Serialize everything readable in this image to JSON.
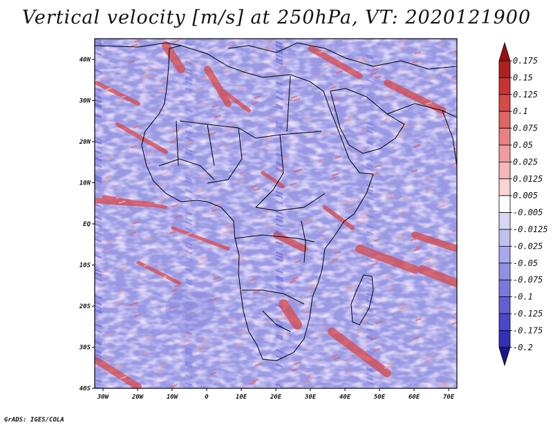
{
  "title": "Vertical velocity [m/s] at 250hPa, VT: 2020121900",
  "credit": "GrADS: IGES/COLA",
  "map": {
    "region": "Africa",
    "variable": "Vertical velocity",
    "units": "m/s",
    "level": "250hPa",
    "valid_time": "2020121900",
    "lon_labels": [
      "30W",
      "20W",
      "10W",
      "0",
      "10E",
      "20E",
      "30E",
      "40E",
      "50E",
      "60E",
      "70E"
    ],
    "lat_labels": [
      "40N",
      "30N",
      "20N",
      "10N",
      "EQ",
      "10S",
      "20S",
      "30S",
      "40S"
    ]
  },
  "colorbar": {
    "levels": [
      "0.175",
      "0.15",
      "0.125",
      "0.1",
      "0.075",
      "0.05",
      "0.025",
      "0.0125",
      "0.005",
      "-0.005",
      "-0.0125",
      "-0.025",
      "-0.05",
      "-0.075",
      "-0.1",
      "-0.125",
      "-0.175",
      "-0.2"
    ],
    "colors": [
      "#b01e1e",
      "#c83232",
      "#d84848",
      "#e26464",
      "#ea8080",
      "#f09c9c",
      "#f4b8b8",
      "#f8d4d4",
      "#ffffff",
      "#d8d8f4",
      "#c0c0f0",
      "#a8a8ec",
      "#9090e6",
      "#7878de",
      "#6060d4",
      "#4848c8",
      "#3030b8",
      "#2020a0"
    ],
    "top_arrow_color": "#9a1010",
    "bottom_arrow_color": "#1a1490"
  }
}
